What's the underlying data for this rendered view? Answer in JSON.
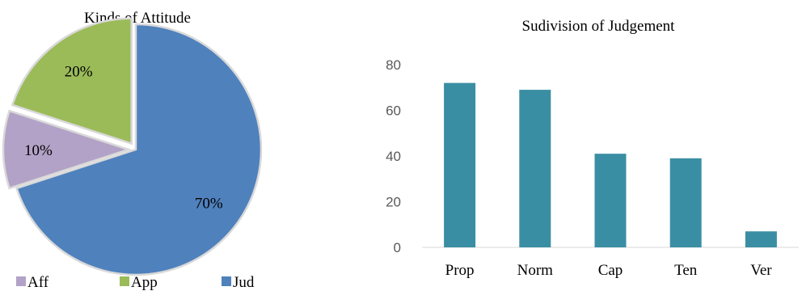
{
  "chart_data": [
    {
      "type": "pie",
      "title": "Kinds of Attitude",
      "slices": [
        {
          "label": "Jud",
          "value": 70,
          "display": "70%",
          "color": "#4f81bd",
          "exploded": false
        },
        {
          "label": "Aff",
          "value": 10,
          "display": "10%",
          "color": "#b3a2c7",
          "exploded": true
        },
        {
          "label": "App",
          "value": 20,
          "display": "20%",
          "color": "#9bbb59",
          "exploded": true
        }
      ],
      "legend": {
        "position": "bottom",
        "items": [
          {
            "label": "Aff",
            "color": "#b3a2c7"
          },
          {
            "label": "App",
            "color": "#9bbb59"
          },
          {
            "label": "Jud",
            "color": "#4f81bd"
          }
        ]
      }
    },
    {
      "type": "bar",
      "title": "Sudivision of Judgement",
      "categories": [
        "Prop",
        "Norm",
        "Cap",
        "Ten",
        "Ver"
      ],
      "values": [
        72,
        69,
        41,
        39,
        7
      ],
      "ylim": [
        0,
        80
      ],
      "yticks": [
        "0",
        "20",
        "40",
        "60",
        "80"
      ],
      "color": "#3a8ea3",
      "grid": false,
      "legend": null
    }
  ]
}
